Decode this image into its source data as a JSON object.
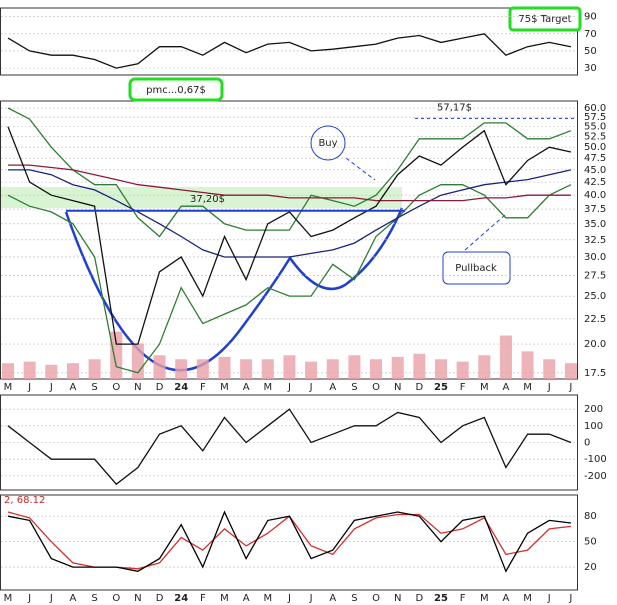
{
  "chart_data": {
    "type": "stock",
    "categories": [
      "M",
      "J",
      "J",
      "A",
      "S",
      "O",
      "N",
      "D",
      "24",
      "F",
      "M",
      "A",
      "M",
      "J",
      "J",
      "A",
      "S",
      "O",
      "N",
      "D",
      "25",
      "F",
      "M",
      "A",
      "M",
      "J",
      "J"
    ],
    "price": {
      "log_scale": true,
      "ylim": [
        17,
        62
      ],
      "yticks": [
        17.5,
        {
          "value": 20,
          "label": "20.0"
        },
        22.5,
        {
          "value": 25,
          "label": "25.0"
        },
        27.5,
        {
          "value": 30,
          "label": "30.0"
        },
        32.5,
        {
          "value": 35,
          "label": "35.0"
        },
        37.5,
        {
          "value": 40,
          "label": "40.0"
        },
        42.5,
        {
          "value": 45,
          "label": "45.0"
        },
        47.5,
        {
          "value": 50,
          "label": "50.0"
        },
        52.5,
        {
          "value": 55,
          "label": "55.0"
        },
        57.5,
        {
          "value": 60,
          "label": "60.0"
        }
      ],
      "close": [
        55,
        42.5,
        40,
        39,
        38,
        20,
        20,
        28,
        30,
        25,
        33,
        27,
        35,
        37,
        33,
        34,
        36,
        38,
        44,
        48,
        46,
        50,
        54,
        42,
        47,
        50,
        48.9
      ],
      "upper_band": [
        60,
        57,
        50,
        45,
        42,
        42,
        36,
        33,
        38,
        38,
        35,
        34,
        34,
        34,
        40,
        39,
        38,
        40,
        45,
        52,
        52,
        52,
        56,
        56,
        52,
        52,
        54
      ],
      "lower_band": [
        40,
        38,
        37,
        35,
        30,
        18,
        17.5,
        20,
        26,
        22,
        23,
        24,
        26,
        25,
        25,
        29,
        27,
        33,
        36,
        40,
        42,
        42,
        40,
        36,
        36,
        40,
        42
      ],
      "ma_short": [
        45,
        45,
        44,
        42,
        41,
        39,
        37,
        35,
        33,
        31,
        30,
        30,
        30,
        30,
        30.5,
        31,
        32,
        34,
        36,
        38,
        40,
        41,
        42,
        42.5,
        43,
        44,
        45
      ],
      "ma_long": [
        46,
        46,
        45.5,
        45,
        44,
        43,
        42,
        41.5,
        41,
        40.5,
        40,
        40,
        40,
        39.5,
        39.5,
        39.5,
        39.5,
        39,
        39,
        39,
        39,
        39,
        39.5,
        39.5,
        40,
        40,
        40
      ],
      "colors": {
        "close": "#111111",
        "upper_band": "#2e7d32",
        "lower_band": "#2e7d32",
        "ma_short": "#1a237e",
        "ma_long": "#8b1a3a"
      }
    },
    "volume": {
      "ylim": [
        0,
        100
      ],
      "color": "#e8a0a8",
      "values": [
        20,
        22,
        18,
        20,
        25,
        60,
        45,
        30,
        25,
        25,
        28,
        25,
        25,
        30,
        22,
        25,
        30,
        25,
        28,
        32,
        25,
        22,
        30,
        55,
        35,
        25,
        20
      ]
    },
    "rsi": {
      "ylim": [
        22,
        100
      ],
      "yticks": [
        30,
        50,
        70,
        90
      ],
      "color": "#111111",
      "values": [
        65,
        50,
        45,
        45,
        40,
        30,
        35,
        55,
        55,
        45,
        60,
        48,
        58,
        60,
        50,
        52,
        55,
        58,
        65,
        68,
        60,
        65,
        70,
        45,
        55,
        60,
        55
      ]
    },
    "cci": {
      "ylim": [
        -285,
        285
      ],
      "yticks": [
        200,
        100,
        0,
        -100,
        -200
      ],
      "color": "#111111",
      "values": [
        100,
        0,
        -100,
        -100,
        -100,
        -250,
        -150,
        50,
        100,
        -50,
        150,
        0,
        100,
        200,
        0,
        50,
        100,
        100,
        180,
        150,
        0,
        100,
        150,
        -150,
        50,
        50,
        0
      ]
    },
    "stoch": {
      "label": "2, 68.12",
      "ylim": [
        -7,
        105
      ],
      "yticks": [
        80,
        50,
        20
      ],
      "series": [
        {
          "color": "#000000",
          "values": [
            80,
            75,
            30,
            20,
            20,
            20,
            15,
            30,
            70,
            20,
            85,
            30,
            75,
            80,
            30,
            40,
            75,
            80,
            85,
            80,
            50,
            75,
            80,
            15,
            60,
            75,
            72
          ]
        },
        {
          "color": "#d32f2f",
          "values": [
            85,
            78,
            50,
            25,
            20,
            20,
            18,
            25,
            55,
            40,
            65,
            45,
            60,
            80,
            45,
            35,
            65,
            78,
            82,
            82,
            60,
            65,
            78,
            35,
            40,
            65,
            68
          ]
        }
      ]
    },
    "annotations": {
      "target": "75$ Target",
      "pmc": "pmc...0,67$",
      "buy": "Buy",
      "pullback": "Pullback",
      "support": {
        "text": "37,20$",
        "value": 37.2
      },
      "resistance": {
        "text": "57,17$",
        "value": 57.17
      }
    }
  }
}
